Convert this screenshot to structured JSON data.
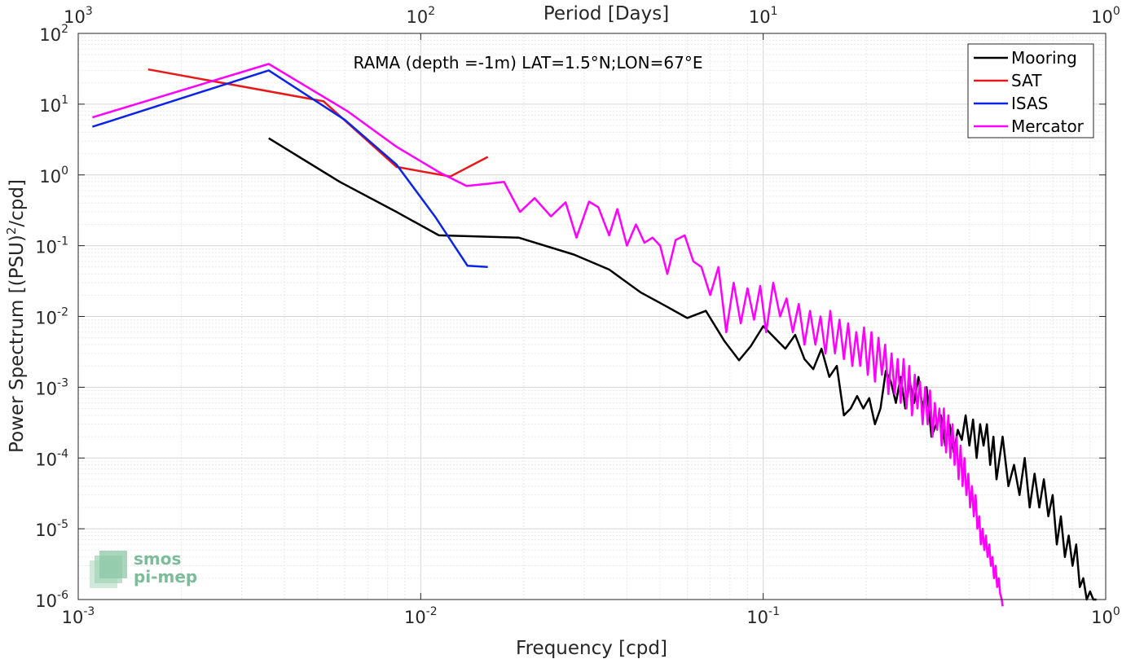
{
  "chart_data": {
    "type": "line",
    "title": "RAMA (depth =-1m) LAT=1.5°N;LON=67°E",
    "xlabel": "Frequency [cpd]",
    "ylabel": "Power Spectrum [(PSU)²/cpd]",
    "ylabel_main": "Power Spectrum [(PSU)",
    "ylabel_sup": "2",
    "ylabel_tail": "/cpd]",
    "top_xlabel": "Period [Days]",
    "xscale": "log",
    "yscale": "log",
    "xlim": [
      0.001,
      1
    ],
    "ylim": [
      1e-06,
      100
    ],
    "grid": true,
    "legend_position": "top-right",
    "x_ticks": [
      {
        "base": "10",
        "exp": "-3"
      },
      {
        "base": "10",
        "exp": "-2"
      },
      {
        "base": "10",
        "exp": "-1"
      },
      {
        "base": "10",
        "exp": "0"
      }
    ],
    "y_ticks": [
      {
        "base": "10",
        "exp": "-6"
      },
      {
        "base": "10",
        "exp": "-5"
      },
      {
        "base": "10",
        "exp": "-4"
      },
      {
        "base": "10",
        "exp": "-3"
      },
      {
        "base": "10",
        "exp": "-2"
      },
      {
        "base": "10",
        "exp": "-1"
      },
      {
        "base": "10",
        "exp": "0"
      },
      {
        "base": "10",
        "exp": "1"
      },
      {
        "base": "10",
        "exp": "2"
      }
    ],
    "top_ticks": [
      {
        "base": "10",
        "exp": "3"
      },
      {
        "base": "10",
        "exp": "2"
      },
      {
        "base": "10",
        "exp": "1"
      },
      {
        "base": "10",
        "exp": "0"
      }
    ],
    "series": [
      {
        "name": "Mooring",
        "color": "#000000",
        "x": [
          0.0036,
          0.0058,
          0.0085,
          0.0113,
          0.0193,
          0.028,
          0.0355,
          0.0438,
          0.052,
          0.06,
          0.068,
          0.077,
          0.085,
          0.092,
          0.1,
          0.108,
          0.116,
          0.124,
          0.132,
          0.14,
          0.148,
          0.156,
          0.164,
          0.172,
          0.18,
          0.188,
          0.196,
          0.204,
          0.212,
          0.22,
          0.228,
          0.236,
          0.244,
          0.252,
          0.26,
          0.268,
          0.276,
          0.284,
          0.292,
          0.3,
          0.31,
          0.32,
          0.33,
          0.34,
          0.35,
          0.36,
          0.37,
          0.38,
          0.39,
          0.4,
          0.41,
          0.42,
          0.43,
          0.44,
          0.45,
          0.46,
          0.47,
          0.48,
          0.5,
          0.52,
          0.54,
          0.56,
          0.58,
          0.6,
          0.62,
          0.64,
          0.66,
          0.68,
          0.7,
          0.72,
          0.74,
          0.76,
          0.78,
          0.8,
          0.82,
          0.84,
          0.86,
          0.88,
          0.9,
          0.92,
          0.94
        ],
        "values": [
          3.3,
          0.8,
          0.3,
          0.14,
          0.13,
          0.075,
          0.046,
          0.022,
          0.014,
          0.0095,
          0.012,
          0.0045,
          0.0024,
          0.0038,
          0.0073,
          0.005,
          0.0035,
          0.0055,
          0.0025,
          0.0018,
          0.0035,
          0.0014,
          0.002,
          0.0004,
          0.0005,
          0.00075,
          0.0005,
          0.0007,
          0.0003,
          0.0005,
          0.0017,
          0.0012,
          0.0006,
          0.0014,
          0.0005,
          0.0012,
          0.0006,
          0.0014,
          0.0005,
          0.001,
          0.0002,
          0.0003,
          0.0004,
          0.00015,
          0.0003,
          0.00012,
          0.00025,
          0.00018,
          0.0004,
          0.00015,
          0.00035,
          0.0001,
          0.0003,
          0.00015,
          0.0003,
          8e-05,
          0.0002,
          5e-05,
          0.0002,
          4e-05,
          8e-05,
          3e-05,
          0.0001,
          2e-05,
          6e-05,
          2e-05,
          5e-05,
          1.5e-05,
          3e-05,
          6e-06,
          1.5e-05,
          4e-06,
          8e-06,
          3e-06,
          6e-06,
          1.5e-06,
          2e-06,
          1e-06,
          1.3e-06,
          1e-06,
          1e-06
        ]
      },
      {
        "name": "SAT",
        "color": "#e8181a",
        "x": [
          0.0016,
          0.0052,
          0.0085,
          0.0122,
          0.0157
        ],
        "values": [
          31,
          11,
          1.3,
          0.95,
          1.8
        ]
      },
      {
        "name": "ISAS",
        "color": "#0a24e8",
        "x": [
          0.0011,
          0.0036,
          0.006,
          0.0085,
          0.011,
          0.0137,
          0.0157
        ],
        "values": [
          4.8,
          30,
          6,
          1.4,
          0.26,
          0.052,
          0.05
        ]
      },
      {
        "name": "Mercator",
        "color": "#ff00ff",
        "x": [
          0.0011,
          0.0036,
          0.0061,
          0.0085,
          0.0113,
          0.0136,
          0.0157,
          0.0175,
          0.0195,
          0.0215,
          0.024,
          0.0265,
          0.0285,
          0.031,
          0.033,
          0.0355,
          0.0375,
          0.04,
          0.0425,
          0.045,
          0.0475,
          0.05,
          0.0525,
          0.0555,
          0.059,
          0.0625,
          0.066,
          0.07,
          0.074,
          0.078,
          0.082,
          0.086,
          0.09,
          0.094,
          0.098,
          0.102,
          0.107,
          0.112,
          0.117,
          0.122,
          0.127,
          0.132,
          0.137,
          0.142,
          0.147,
          0.152,
          0.157,
          0.162,
          0.167,
          0.172,
          0.177,
          0.182,
          0.187,
          0.192,
          0.197,
          0.202,
          0.207,
          0.212,
          0.217,
          0.222,
          0.227,
          0.232,
          0.237,
          0.242,
          0.247,
          0.252,
          0.257,
          0.262,
          0.267,
          0.272,
          0.277,
          0.282,
          0.287,
          0.292,
          0.297,
          0.302,
          0.307,
          0.312,
          0.317,
          0.322,
          0.327,
          0.332,
          0.337,
          0.342,
          0.347,
          0.352,
          0.357,
          0.362,
          0.367,
          0.372,
          0.377,
          0.382,
          0.387,
          0.392,
          0.397,
          0.402,
          0.407,
          0.412,
          0.417,
          0.422,
          0.427,
          0.432,
          0.437,
          0.442,
          0.447,
          0.452,
          0.457,
          0.462,
          0.467,
          0.472,
          0.477,
          0.482,
          0.487,
          0.492,
          0.497,
          0.5
        ],
        "values": [
          6.5,
          37,
          8,
          2.5,
          1.1,
          0.7,
          0.75,
          0.8,
          0.3,
          0.47,
          0.26,
          0.41,
          0.13,
          0.42,
          0.35,
          0.14,
          0.33,
          0.1,
          0.2,
          0.11,
          0.13,
          0.1,
          0.04,
          0.12,
          0.14,
          0.06,
          0.05,
          0.02,
          0.05,
          0.006,
          0.03,
          0.008,
          0.025,
          0.009,
          0.027,
          0.006,
          0.03,
          0.01,
          0.018,
          0.006,
          0.015,
          0.004,
          0.012,
          0.004,
          0.01,
          0.003,
          0.012,
          0.003,
          0.009,
          0.0025,
          0.008,
          0.002,
          0.006,
          0.002,
          0.007,
          0.0015,
          0.006,
          0.0012,
          0.005,
          0.0015,
          0.004,
          0.0008,
          0.003,
          0.0008,
          0.0025,
          0.0006,
          0.0025,
          0.0005,
          0.002,
          0.0004,
          0.0015,
          0.0005,
          0.0012,
          0.0003,
          0.001,
          0.0003,
          0.0009,
          0.0002,
          0.0006,
          0.00025,
          0.0005,
          0.00015,
          0.0005,
          0.00012,
          0.0004,
          0.0001,
          0.0003,
          8e-05,
          0.0002,
          5e-05,
          0.00015,
          4e-05,
          0.0001,
          3e-05,
          6e-05,
          2e-05,
          4e-05,
          1.5e-05,
          3e-05,
          1e-05,
          1.5e-05,
          6e-06,
          1e-05,
          5e-06,
          8e-06,
          4e-06,
          6e-06,
          3e-06,
          4e-06,
          2e-06,
          3e-06,
          1.5e-06,
          2e-06,
          1.2e-06,
          1e-06,
          8e-07
        ]
      }
    ]
  },
  "logo": {
    "line1": "smos",
    "line2": "pi-mep",
    "color": "#7dbb9a"
  }
}
